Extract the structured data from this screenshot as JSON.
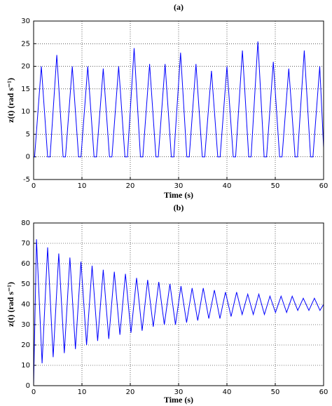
{
  "chart_data": [
    {
      "type": "line",
      "title": "(a)",
      "xlabel": "Time  (s)",
      "ylabel": "z(t)   (rad s⁻¹)",
      "xlim": [
        0,
        60
      ],
      "xticks": [
        0,
        10,
        20,
        30,
        40,
        50,
        60
      ],
      "ylim": [
        -5,
        30
      ],
      "yticks": [
        -5,
        0,
        5,
        10,
        15,
        20,
        25,
        30
      ],
      "grid": true,
      "color": "#0000ff",
      "x": [
        0,
        0.2,
        1.6,
        2.9,
        3.4,
        4.8,
        6.1,
        6.6,
        8.0,
        9.3,
        9.8,
        11.2,
        12.5,
        13.0,
        14.4,
        15.7,
        16.2,
        17.6,
        18.9,
        19.4,
        20.8,
        22.1,
        22.6,
        24.0,
        25.3,
        25.8,
        27.2,
        28.5,
        29.0,
        30.4,
        31.7,
        32.2,
        33.6,
        34.9,
        35.4,
        36.8,
        38.1,
        38.6,
        40.0,
        41.3,
        41.8,
        43.2,
        44.5,
        45.0,
        46.4,
        47.7,
        48.2,
        49.6,
        50.9,
        51.4,
        52.8,
        54.1,
        54.6,
        56.0,
        57.3,
        57.8,
        59.2,
        60
      ],
      "values": [
        0,
        0,
        20,
        0,
        0,
        22.5,
        0,
        0,
        20,
        0,
        0,
        20,
        0,
        0,
        19.5,
        0,
        0,
        20,
        0,
        0,
        24,
        0,
        0,
        20.5,
        0,
        0,
        20.5,
        0,
        0,
        23,
        0,
        0,
        20.5,
        0,
        0,
        19,
        0,
        0,
        20,
        0,
        0,
        23.5,
        0,
        0,
        25.5,
        0,
        0,
        21,
        0,
        0,
        19.5,
        0,
        0,
        23.5,
        0,
        0,
        20,
        2
      ]
    },
    {
      "type": "line",
      "title": "(b)",
      "xlabel": "Time  (s)",
      "ylabel": "z(t)   (rad s⁻¹)",
      "xlim": [
        0,
        60
      ],
      "xticks": [
        0,
        10,
        20,
        30,
        40,
        50,
        60
      ],
      "ylim": [
        0,
        80
      ],
      "yticks": [
        0,
        10,
        20,
        30,
        40,
        50,
        60,
        70,
        80
      ],
      "grid": true,
      "color": "#0000ff",
      "x": [
        0,
        0.6,
        1.75,
        2.9,
        4.05,
        5.2,
        6.35,
        7.5,
        8.65,
        9.8,
        10.95,
        12.1,
        13.25,
        14.4,
        15.55,
        16.7,
        17.85,
        19.0,
        20.15,
        21.3,
        22.45,
        23.6,
        24.75,
        25.9,
        27.05,
        28.2,
        29.35,
        30.5,
        31.65,
        32.8,
        33.95,
        35.1,
        36.25,
        37.4,
        38.55,
        39.7,
        40.85,
        42.0,
        43.15,
        44.3,
        45.45,
        46.6,
        47.75,
        48.9,
        50.05,
        51.2,
        52.35,
        53.5,
        54.65,
        55.8,
        56.95,
        58.1,
        59.25,
        60
      ],
      "values": [
        0,
        72,
        11,
        68,
        14,
        65,
        16,
        63,
        18,
        61,
        20,
        59,
        22,
        57,
        23,
        56,
        25,
        55,
        26,
        53,
        27,
        52,
        29,
        51,
        30,
        50,
        30,
        49,
        31,
        48,
        32,
        48,
        33,
        47,
        33,
        46,
        34,
        46,
        35,
        45,
        35,
        45,
        35,
        44,
        36,
        44,
        36,
        44,
        37,
        43,
        37,
        43,
        37,
        40
      ]
    }
  ]
}
